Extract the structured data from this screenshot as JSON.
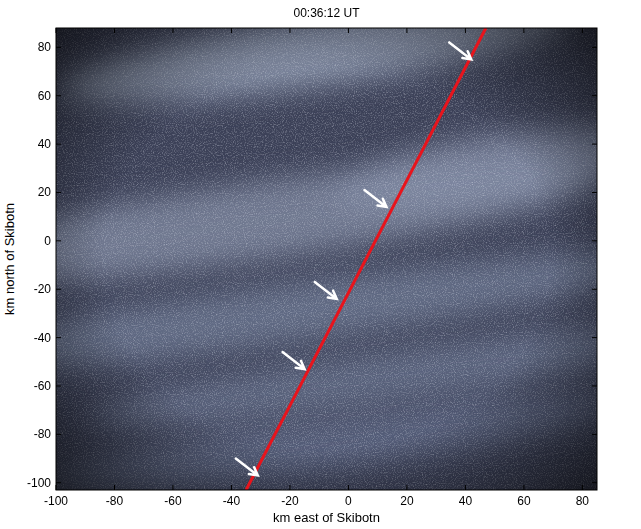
{
  "chart_data": {
    "type": "image",
    "title": "00:36:12 UT",
    "x_label": "km east of Skibotn",
    "y_label": "km north of Skibotn",
    "xlim": [
      -100,
      85
    ],
    "ylim": [
      -103,
      88
    ],
    "xticks": [
      -100,
      -80,
      -60,
      -40,
      -20,
      0,
      20,
      40,
      60,
      80
    ],
    "yticks": [
      -100,
      -80,
      -60,
      -40,
      -20,
      0,
      20,
      40,
      60,
      80
    ],
    "line": {
      "x": [
        -35,
        47
      ],
      "y": [
        -103,
        88
      ],
      "color": "#e8141c"
    },
    "arrows": {
      "x": [
        42,
        13,
        -4,
        -15,
        -31
      ],
      "y": [
        75,
        14,
        -24,
        -53,
        -97
      ],
      "color": "#ffffff"
    }
  }
}
